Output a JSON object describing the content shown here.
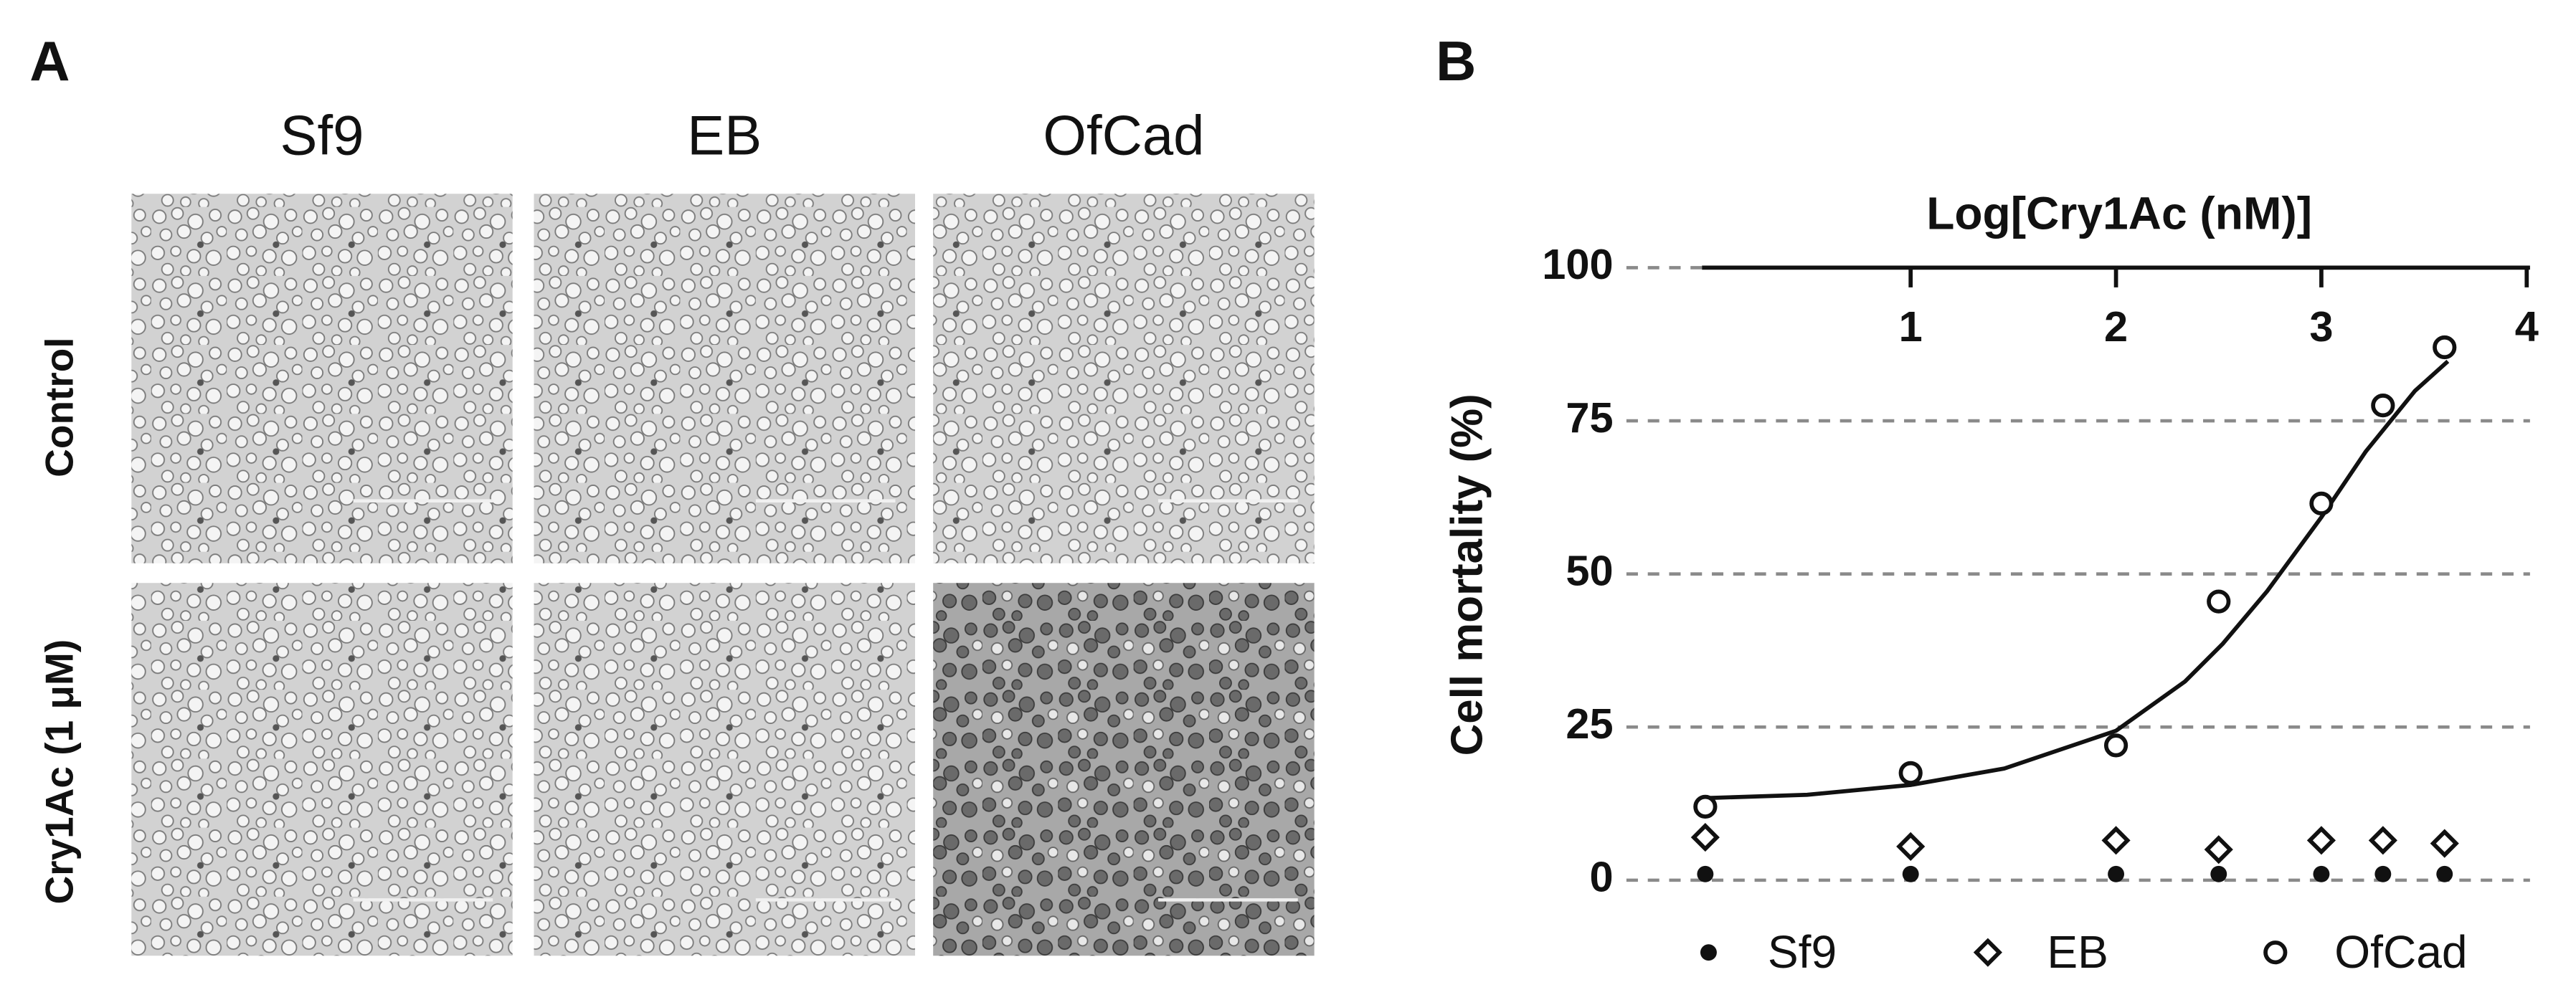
{
  "panel_a": {
    "label": "A",
    "columns": [
      "Sf9",
      "EB",
      "OfCad"
    ],
    "rows": [
      "Control",
      "Cry1Ac (1 μM)"
    ]
  },
  "panel_b": {
    "label": "B"
  },
  "chart_data": {
    "type": "scatter",
    "xlabel": "Log[Cry1Ac (nM)]",
    "ylabel": "Cell mortality (%)",
    "xlim": [
      0,
      4
    ],
    "xticks": [
      1,
      2,
      3,
      4
    ],
    "ylim": [
      0,
      100
    ],
    "yticks": [
      0,
      25,
      50,
      75,
      100
    ],
    "grid": true,
    "x": [
      0,
      1,
      2,
      2.5,
      3,
      3.3,
      3.6
    ],
    "series": [
      {
        "name": "Sf9",
        "color": "#111111",
        "marker": "filled-circle",
        "values": [
          1,
          1,
          1,
          1,
          1,
          1,
          1
        ]
      },
      {
        "name": "EB",
        "color": "#111111",
        "marker": "diamond",
        "values": [
          7,
          5.5,
          6.5,
          5,
          6.5,
          6.5,
          6
        ]
      },
      {
        "name": "OfCad",
        "color": "#111111",
        "marker": "open-circle",
        "values": [
          12,
          17.5,
          22,
          45.5,
          61.5,
          77.5,
          87
        ]
      }
    ]
  }
}
